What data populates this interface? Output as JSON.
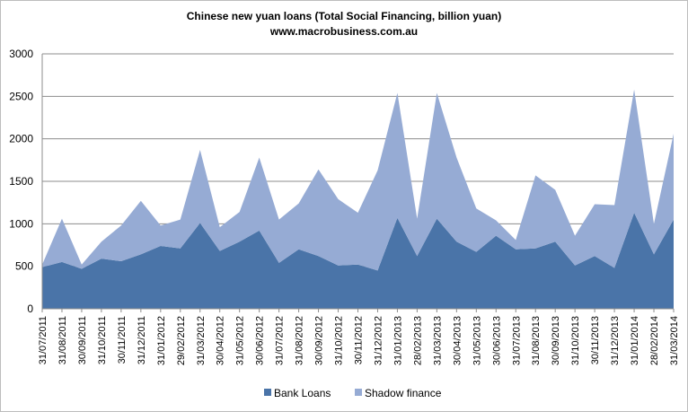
{
  "chart_data": {
    "type": "area",
    "stacked": true,
    "title": "Chinese new yuan loans (Total Social Financing, billion yuan)",
    "subtitle": "www.macrobusiness.com.au",
    "xlabel": "",
    "ylabel": "",
    "ylim": [
      0,
      3000
    ],
    "yticks": [
      0,
      500,
      1000,
      1500,
      2000,
      2500,
      3000
    ],
    "grid": "horizontal",
    "legend_position": "bottom",
    "categories": [
      "31/07/2011",
      "31/08/2011",
      "30/09/2011",
      "31/10/2011",
      "30/11/2011",
      "31/12/2011",
      "31/01/2012",
      "29/02/2012",
      "31/03/2012",
      "30/04/2012",
      "31/05/2012",
      "30/06/2012",
      "31/07/2012",
      "31/08/2012",
      "30/09/2012",
      "31/10/2012",
      "30/11/2012",
      "31/12/2012",
      "31/01/2013",
      "28/02/2013",
      "31/03/2013",
      "30/04/2013",
      "31/05/2013",
      "30/06/2013",
      "31/07/2013",
      "31/08/2013",
      "30/09/2013",
      "31/10/2013",
      "30/11/2013",
      "31/12/2013",
      "31/01/2014",
      "28/02/2014",
      "31/03/2014"
    ],
    "series": [
      {
        "name": "Bank Loans",
        "color": "#4a74a8",
        "values": [
          490,
          550,
          470,
          590,
          560,
          640,
          740,
          710,
          1010,
          680,
          790,
          920,
          540,
          700,
          620,
          510,
          520,
          450,
          1070,
          620,
          1060,
          790,
          670,
          860,
          700,
          710,
          790,
          510,
          620,
          480,
          1130,
          640,
          1050
        ]
      },
      {
        "name": "Shadow finance",
        "color": "#96abd4",
        "values": [
          30,
          510,
          50,
          200,
          420,
          630,
          240,
          340,
          860,
          280,
          350,
          860,
          510,
          540,
          1020,
          780,
          610,
          1180,
          1470,
          440,
          1480,
          990,
          510,
          180,
          110,
          860,
          610,
          350,
          610,
          740,
          1450,
          360,
          1010
        ]
      }
    ]
  }
}
